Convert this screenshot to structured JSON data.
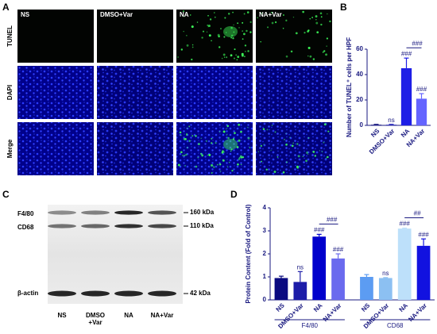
{
  "panel_a": {
    "letter": "A",
    "columns": [
      "NS",
      "DMSO+Var",
      "NA",
      "NA+Var"
    ],
    "rows": [
      "TUNEL",
      "DAPI",
      "Merge"
    ]
  },
  "panel_c": {
    "letter": "C",
    "markers": [
      "F4/80",
      "CD68",
      "β-actin"
    ],
    "sizes": [
      "160 kDa",
      "110 kDa",
      "42 kDa"
    ],
    "lanes": [
      [
        "NS"
      ],
      [
        "DMSO",
        "+Var"
      ],
      [
        "NA"
      ],
      [
        "NA+Var"
      ]
    ]
  },
  "chart_data": [
    {
      "type": "bar",
      "letter": "B",
      "ylabel": "Number of TUNEL⁺ cells per HPF",
      "categories": [
        "NS",
        "DMSO+Var",
        "NA",
        "NA+Var"
      ],
      "values": [
        0.5,
        0.5,
        45,
        21
      ],
      "errors": [
        0.3,
        0.3,
        8,
        4
      ],
      "colors": [
        "#16167e",
        "#2626b8",
        "#1e1ee6",
        "#6464ff"
      ],
      "annotations": [
        null,
        "ns",
        "###",
        "###"
      ],
      "bracket": {
        "from": 2,
        "to": 3,
        "label": "###"
      },
      "ylim": [
        0,
        60
      ],
      "yticks": [
        0,
        20,
        40,
        60
      ]
    },
    {
      "type": "bar",
      "letter": "D",
      "ylabel": "Protein Content (Fold of Control)",
      "groups": [
        {
          "name": "F4/80",
          "categories": [
            "NS",
            "DMSO+Var",
            "NA",
            "NA+Var"
          ],
          "values": [
            0.95,
            0.78,
            2.75,
            1.8
          ],
          "errors": [
            0.08,
            0.45,
            0.1,
            0.2
          ],
          "colors": [
            "#0a0a80",
            "#1c1ca8",
            "#0000cc",
            "#6a6aee"
          ],
          "annotations": [
            null,
            "ns",
            "###",
            "###"
          ],
          "bracket": {
            "from": 2,
            "to": 3,
            "label": "###"
          }
        },
        {
          "name": "CD68",
          "categories": [
            "NS",
            "DMSO+Var",
            "NA",
            "NA+Var"
          ],
          "values": [
            1.0,
            0.95,
            3.1,
            2.35
          ],
          "errors": [
            0.1,
            0.02,
            0.02,
            0.3
          ],
          "colors": [
            "#5c9cf2",
            "#8cc0f2",
            "#bde0fa",
            "#1212e0"
          ],
          "annotations": [
            null,
            "ns",
            "###",
            "###"
          ],
          "bracket": {
            "from": 2,
            "to": 3,
            "label": "##"
          }
        }
      ],
      "ylim": [
        0,
        4
      ],
      "yticks": [
        0,
        1,
        2,
        3,
        4
      ]
    }
  ]
}
